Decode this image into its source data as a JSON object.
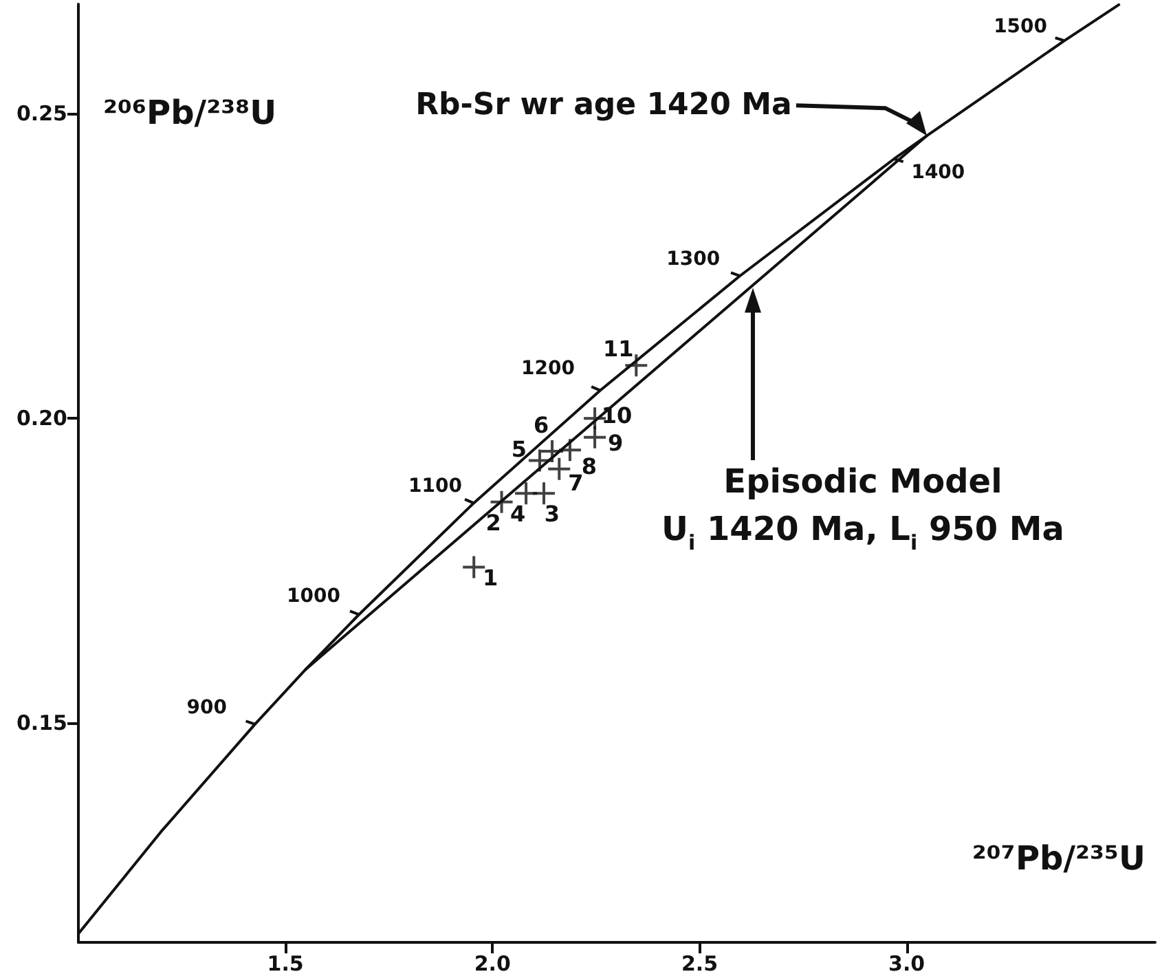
{
  "chart_data": {
    "type": "line",
    "xlabel": "²⁰⁷Pb/²³⁵U",
    "ylabel": "²⁰⁶Pb/²³⁸U",
    "xlim": [
      1.0,
      3.6
    ],
    "ylim": [
      0.114,
      0.268
    ],
    "xticks": [
      {
        "value": 1.5,
        "label": "1.5"
      },
      {
        "value": 2.0,
        "label": "2.0"
      },
      {
        "value": 2.5,
        "label": "2.5"
      },
      {
        "value": 3.0,
        "label": "3.0"
      }
    ],
    "yticks": [
      {
        "value": 0.15,
        "label": "0.15"
      },
      {
        "value": 0.2,
        "label": "0.20"
      },
      {
        "value": 0.25,
        "label": "0.25"
      }
    ],
    "grid": false,
    "series": [
      {
        "type": "line",
        "color": "#111111",
        "marker": "none",
        "line_style": "solid",
        "x": [
          1.0023,
          1.1988,
          1.4264,
          1.5488,
          1.6774,
          1.9546,
          2.2602,
          2.5976,
          2.9697,
          3.0487,
          3.381,
          3.5124
        ],
        "values": [
          0.1156,
          0.1321,
          0.1498,
          0.1588,
          0.1678,
          0.1861,
          0.2046,
          0.2234,
          0.2426,
          0.2464,
          0.262,
          0.2679
        ]
      },
      {
        "type": "line",
        "color": "#111111",
        "marker": "none",
        "line_style": "solid",
        "x": [
          1.5488,
          3.0487
        ],
        "values": [
          0.1588,
          0.2464
        ]
      },
      {
        "type": "scatter",
        "color": "#111111",
        "marker": "cross",
        "x": [
          1.955,
          2.022,
          2.124,
          2.081,
          2.114,
          2.144,
          2.161,
          2.187,
          2.247,
          2.247,
          2.347
        ],
        "values": [
          0.1756,
          0.1863,
          0.1877,
          0.1877,
          0.1931,
          0.1946,
          0.1917,
          0.1948,
          0.1969,
          0.2,
          0.2087
        ]
      }
    ],
    "annotations": [
      {
        "text": "900",
        "x": 1.4264,
        "y": 0.1498
      },
      {
        "text": "1000",
        "x": 1.6774,
        "y": 0.1678
      },
      {
        "text": "1100",
        "x": 1.9546,
        "y": 0.1861
      },
      {
        "text": "1200",
        "x": 2.2602,
        "y": 0.2046
      },
      {
        "text": "1300",
        "x": 2.5976,
        "y": 0.2234
      },
      {
        "text": "1400",
        "x": 2.9697,
        "y": 0.2426
      },
      {
        "text": "1500",
        "x": 3.381,
        "y": 0.262
      },
      "Rb-Sr wr age 1420 Ma",
      "Episodic Model\nU$_{i}$ 1420 Ma, L$_{i}$ 950 Ma",
      {
        "text": "1",
        "x": 1.955,
        "y": 0.1756
      },
      {
        "text": "2",
        "x": 2.022,
        "y": 0.1863
      },
      {
        "text": "3",
        "x": 2.124,
        "y": 0.1877
      },
      {
        "text": "4",
        "x": 2.081,
        "y": 0.1877
      },
      {
        "text": "5",
        "x": 2.114,
        "y": 0.1931
      },
      {
        "text": "6",
        "x": 2.144,
        "y": 0.1946
      },
      {
        "text": "7",
        "x": 2.161,
        "y": 0.1917
      },
      {
        "text": "8",
        "x": 2.187,
        "y": 0.1948
      },
      {
        "text": "9",
        "x": 2.247,
        "y": 0.1969
      },
      {
        "text": "10",
        "x": 2.247,
        "y": 0.2
      },
      {
        "text": "11",
        "x": 2.347,
        "y": 0.2087
      }
    ]
  }
}
